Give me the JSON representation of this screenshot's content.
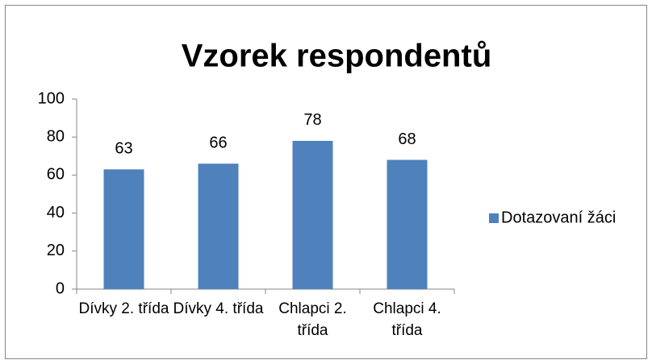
{
  "chart_data": {
    "type": "bar",
    "title": "Vzorek respondentů",
    "categories": [
      "Dívky 2. třída",
      "Dívky 4. třída",
      "Chlapci 2. třída",
      "Chlapci 4. třída"
    ],
    "series": [
      {
        "name": "Dotazovaní žáci",
        "color": "#4f81bd",
        "values": [
          63,
          66,
          78,
          68
        ]
      }
    ],
    "ylim": [
      0,
      100
    ],
    "yticks": [
      0,
      20,
      40,
      60,
      80,
      100
    ],
    "legend": "right",
    "data_labels": true
  }
}
